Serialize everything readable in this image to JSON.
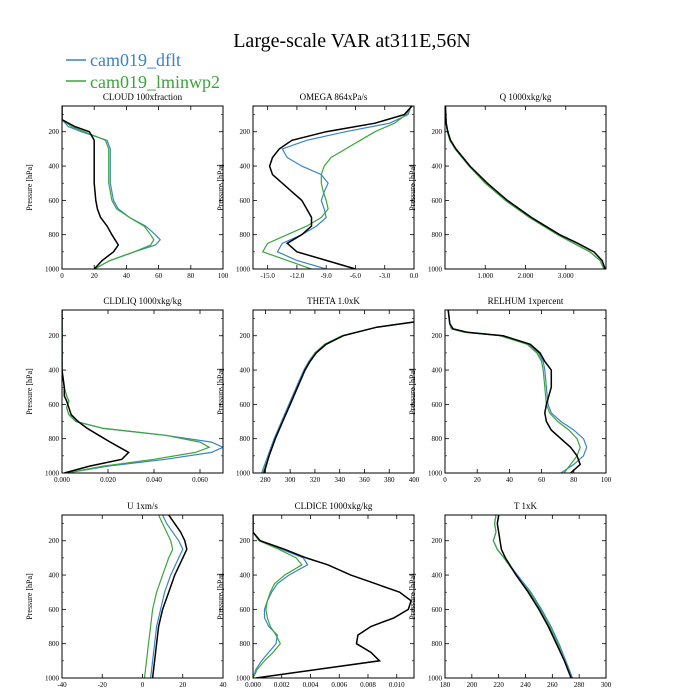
{
  "figure": {
    "title": "Large-scale VAR at311E,56N",
    "legend": [
      {
        "label": "cam019_dflt",
        "color": "#3a84c4"
      },
      {
        "label": "cam019_lminwp2",
        "color": "#3ba53b"
      }
    ],
    "black_color": "#000000"
  },
  "chart_data": [
    {
      "type": "line",
      "title": "CLOUD  100xfraction",
      "ylabel": "Pressure [hPa]",
      "ylim": [
        1000,
        50
      ],
      "yticks": [
        200,
        400,
        600,
        800,
        1000
      ],
      "xlim": [
        0,
        100
      ],
      "xticks": [
        0,
        20,
        40,
        60,
        80,
        100
      ],
      "xtick_labels": [
        "0",
        "20",
        "40",
        "60",
        "80",
        "100"
      ],
      "pressure": [
        50,
        130,
        170,
        200,
        250,
        300,
        400,
        500,
        600,
        650,
        700,
        750,
        800,
        830,
        860,
        900,
        950,
        1000
      ],
      "series": [
        {
          "name": "cam019_dflt",
          "values": [
            0,
            0,
            4,
            12,
            28,
            30,
            30,
            30,
            32,
            35,
            42,
            52,
            58,
            61,
            58,
            45,
            30,
            20
          ]
        },
        {
          "name": "cam019_lminwp2",
          "values": [
            0,
            0,
            6,
            14,
            27,
            29,
            29,
            29,
            31,
            34,
            42,
            51,
            55,
            57,
            55,
            45,
            30,
            20
          ]
        },
        {
          "name": "black",
          "values": [
            0,
            0,
            8,
            17,
            20,
            20,
            20,
            20,
            21,
            22,
            24,
            28,
            31,
            33,
            35,
            32,
            25,
            20
          ]
        }
      ]
    },
    {
      "type": "line",
      "title": "OMEGA  864xPa/s",
      "ylabel": "Pressure [hPa]",
      "ylim": [
        1000,
        50
      ],
      "yticks": [
        200,
        400,
        600,
        800,
        1000
      ],
      "xlim": [
        -16.5,
        0
      ],
      "xticks": [
        -15,
        -12,
        -9,
        -6,
        -3,
        0
      ],
      "xtick_labels": [
        "-15.0",
        "-12.0",
        "-9.0",
        "-6.0",
        "-3.0",
        "0.0"
      ],
      "pressure": [
        50,
        100,
        150,
        200,
        250,
        300,
        350,
        400,
        450,
        500,
        550,
        600,
        650,
        700,
        750,
        800,
        850,
        900,
        950,
        1000
      ],
      "series": [
        {
          "name": "cam019_dflt",
          "values": [
            -0.3,
            -0.6,
            -2.5,
            -7,
            -11,
            -13.5,
            -13,
            -11.5,
            -9.5,
            -8.8,
            -9.2,
            -9.5,
            -9.2,
            -9,
            -10,
            -11.5,
            -13.5,
            -14,
            -12,
            -9
          ]
        },
        {
          "name": "cam019_lminwp2",
          "values": [
            -0.3,
            -0.8,
            -2,
            -4,
            -5.5,
            -7,
            -8.5,
            -9.2,
            -9.5,
            -9.5,
            -9.3,
            -9,
            -8.8,
            -9.5,
            -11,
            -13,
            -15,
            -15.5,
            -13,
            -10.5
          ]
        },
        {
          "name": "black",
          "values": [
            -0.2,
            -1,
            -4,
            -9,
            -12.5,
            -13.8,
            -14.5,
            -14.8,
            -14.5,
            -13.5,
            -12.5,
            -11.5,
            -11,
            -10.5,
            -10.5,
            -11.5,
            -13,
            -12,
            -9,
            -6
          ]
        }
      ]
    },
    {
      "type": "line",
      "title": "Q  1000xkg/kg",
      "ylabel": "Pressure [hPa]",
      "ylim": [
        1000,
        50
      ],
      "yticks": [
        200,
        400,
        600,
        800,
        1000
      ],
      "xlim": [
        0,
        4.0
      ],
      "xticks": [
        1,
        2,
        3
      ],
      "xtick_labels": [
        "1.000",
        "2.000",
        "3.000"
      ],
      "pressure": [
        50,
        150,
        200,
        250,
        300,
        400,
        500,
        600,
        700,
        800,
        850,
        900,
        950,
        1000
      ],
      "series": [
        {
          "name": "cam019_dflt",
          "values": [
            0.01,
            0.03,
            0.06,
            0.12,
            0.25,
            0.6,
            1.0,
            1.5,
            2.1,
            2.8,
            3.2,
            3.6,
            3.85,
            3.95
          ]
        },
        {
          "name": "cam019_lminwp2",
          "values": [
            0.01,
            0.03,
            0.06,
            0.12,
            0.25,
            0.6,
            1.0,
            1.5,
            2.1,
            2.8,
            3.2,
            3.6,
            3.85,
            3.95
          ]
        },
        {
          "name": "black",
          "values": [
            0.01,
            0.03,
            0.07,
            0.14,
            0.27,
            0.62,
            1.05,
            1.55,
            2.15,
            2.85,
            3.3,
            3.7,
            3.9,
            3.98
          ]
        }
      ]
    },
    {
      "type": "line",
      "title": "CLDLIQ  1000xkg/kg",
      "ylabel": "Pressure [hPa]",
      "ylim": [
        1000,
        50
      ],
      "yticks": [
        200,
        400,
        600,
        800,
        1000
      ],
      "xlim": [
        0,
        0.07
      ],
      "xticks": [
        0,
        0.02,
        0.04,
        0.06
      ],
      "xtick_labels": [
        "0.000",
        "0.020",
        "0.040",
        "0.060"
      ],
      "pressure": [
        50,
        400,
        500,
        550,
        580,
        620,
        660,
        700,
        740,
        780,
        820,
        850,
        880,
        920,
        960,
        1000
      ],
      "series": [
        {
          "name": "cam019_dflt",
          "values": [
            0,
            0,
            0.001,
            0.002,
            0.003,
            0.002,
            0.003,
            0.006,
            0.018,
            0.045,
            0.065,
            0.07,
            0.065,
            0.045,
            0.02,
            0.002
          ]
        },
        {
          "name": "cam019_lminwp2",
          "values": [
            0,
            0,
            0.001,
            0.002,
            0.003,
            0.002,
            0.003,
            0.006,
            0.018,
            0.045,
            0.06,
            0.064,
            0.058,
            0.04,
            0.018,
            0.002
          ]
        },
        {
          "name": "black",
          "values": [
            0,
            0,
            0.001,
            0.001,
            0.002,
            0.003,
            0.004,
            0.007,
            0.011,
            0.016,
            0.021,
            0.025,
            0.029,
            0.026,
            0.012,
            0.001
          ]
        }
      ]
    },
    {
      "type": "line",
      "title": "THETA  1.0xK",
      "ylabel": "Pressure [hPa]",
      "ylim": [
        1000,
        50
      ],
      "yticks": [
        200,
        400,
        600,
        800,
        1000
      ],
      "xlim": [
        270,
        400
      ],
      "xticks": [
        280,
        300,
        320,
        340,
        360,
        380,
        400
      ],
      "xtick_labels": [
        "280",
        "300",
        "320",
        "340",
        "360",
        "380",
        "400"
      ],
      "pressure": [
        120,
        150,
        200,
        250,
        300,
        350,
        400,
        500,
        600,
        700,
        800,
        900,
        1000
      ],
      "series": [
        {
          "name": "cam019_dflt",
          "values": [
            400,
            370,
            342,
            328,
            320,
            315,
            311,
            305,
            299,
            293,
            287,
            282,
            277
          ]
        },
        {
          "name": "cam019_lminwp2",
          "values": [
            400,
            370,
            342,
            328,
            320,
            316,
            312,
            306,
            300,
            294,
            288,
            283,
            278
          ]
        },
        {
          "name": "black",
          "values": [
            400,
            370,
            343,
            329,
            321,
            316,
            312,
            306,
            300,
            294,
            288,
            283,
            279
          ]
        }
      ]
    },
    {
      "type": "line",
      "title": "RELHUM  1xpercent",
      "ylabel": "Pressure [hPa]",
      "ylim": [
        1000,
        50
      ],
      "yticks": [
        200,
        400,
        600,
        800,
        1000
      ],
      "xlim": [
        0,
        100
      ],
      "xticks": [
        0,
        20,
        40,
        60,
        80,
        100
      ],
      "xtick_labels": [
        "0",
        "20",
        "40",
        "60",
        "80",
        "100"
      ],
      "pressure": [
        50,
        130,
        160,
        180,
        200,
        250,
        300,
        350,
        400,
        500,
        600,
        650,
        700,
        750,
        800,
        850,
        900,
        950,
        1000
      ],
      "series": [
        {
          "name": "cam019_dflt",
          "values": [
            2,
            3,
            4,
            12,
            35,
            52,
            58,
            61,
            62,
            63,
            64,
            66,
            72,
            80,
            86,
            88,
            86,
            80,
            72
          ]
        },
        {
          "name": "cam019_lminwp2",
          "values": [
            2,
            3,
            4,
            12,
            34,
            51,
            57,
            60,
            61,
            62,
            63,
            65,
            70,
            77,
            82,
            84,
            82,
            78,
            74
          ]
        },
        {
          "name": "black",
          "values": [
            2,
            3,
            5,
            14,
            36,
            53,
            59,
            62,
            66,
            66,
            63,
            62,
            63,
            66,
            72,
            78,
            82,
            84,
            78
          ]
        }
      ]
    },
    {
      "type": "line",
      "title": "U  1xm/s",
      "ylabel": "Pressure [hPa]",
      "ylim": [
        1000,
        50
      ],
      "yticks": [
        200,
        400,
        600,
        800,
        1000
      ],
      "xlim": [
        -40,
        40
      ],
      "xticks": [
        -40,
        -20,
        0,
        20,
        40
      ],
      "xtick_labels": [
        "-40",
        "-20",
        "0",
        "20",
        "40"
      ],
      "pressure": [
        50,
        100,
        150,
        200,
        250,
        300,
        400,
        500,
        600,
        700,
        800,
        900,
        1000
      ],
      "series": [
        {
          "name": "cam019_dflt",
          "values": [
            10,
            12,
            15,
            18,
            20,
            18,
            14,
            11,
            9,
            7,
            6,
            5,
            4
          ]
        },
        {
          "name": "cam019_lminwp2",
          "values": [
            8,
            10,
            12,
            14,
            15,
            13,
            10,
            7,
            5,
            4,
            3,
            2,
            1
          ]
        },
        {
          "name": "black",
          "values": [
            13,
            16,
            19,
            21,
            22,
            20,
            16,
            13,
            10,
            8,
            7,
            6,
            5
          ]
        }
      ]
    },
    {
      "type": "line",
      "title": "CLDICE  1000xkg/kg",
      "ylabel": "Pressure [hPa]",
      "ylim": [
        1000,
        50
      ],
      "yticks": [
        200,
        400,
        600,
        800,
        1000
      ],
      "xlim": [
        0,
        0.0112
      ],
      "xticks": [
        0,
        0.002,
        0.004,
        0.006,
        0.008,
        0.01
      ],
      "xtick_labels": [
        "0.000",
        "0.002",
        "0.004",
        "0.006",
        "0.008",
        "0.010"
      ],
      "pressure": [
        50,
        150,
        200,
        250,
        300,
        340,
        400,
        450,
        500,
        550,
        600,
        650,
        700,
        750,
        800,
        850,
        900,
        950,
        1000
      ],
      "series": [
        {
          "name": "cam019_dflt",
          "values": [
            0,
            0,
            0.0005,
            0.002,
            0.0035,
            0.0038,
            0.0025,
            0.0017,
            0.0013,
            0.001,
            0.0008,
            0.0008,
            0.0011,
            0.0017,
            0.0016,
            0.0011,
            0.0006,
            0.0002,
            0
          ]
        },
        {
          "name": "cam019_lminwp2",
          "values": [
            0,
            0,
            0.0004,
            0.0018,
            0.003,
            0.0034,
            0.0022,
            0.0015,
            0.0012,
            0.001,
            0.0009,
            0.001,
            0.0012,
            0.0016,
            0.0019,
            0.0014,
            0.0008,
            0.0003,
            0
          ]
        },
        {
          "name": "black",
          "values": [
            0,
            0,
            0.0005,
            0.0022,
            0.0037,
            0.0052,
            0.0068,
            0.0085,
            0.0102,
            0.011,
            0.0108,
            0.0098,
            0.0082,
            0.0073,
            0.0072,
            0.0082,
            0.0088,
            0.0045,
            0.0002
          ]
        }
      ]
    },
    {
      "type": "line",
      "title": "T  1xK",
      "ylabel": "Pressure [hPa]",
      "ylim": [
        1000,
        50
      ],
      "yticks": [
        200,
        400,
        600,
        800,
        1000
      ],
      "xlim": [
        180,
        300
      ],
      "xticks": [
        180,
        200,
        220,
        240,
        260,
        280,
        300
      ],
      "xtick_labels": [
        "180",
        "200",
        "220",
        "240",
        "260",
        "280",
        "300"
      ],
      "pressure": [
        50,
        100,
        150,
        200,
        250,
        300,
        400,
        500,
        600,
        700,
        800,
        900,
        1000
      ],
      "series": [
        {
          "name": "cam019_dflt",
          "values": [
            218,
            217,
            218,
            216,
            219,
            224,
            234,
            244,
            252,
            259,
            265,
            270,
            275
          ]
        },
        {
          "name": "cam019_lminwp2",
          "values": [
            218,
            217,
            218,
            216,
            219,
            224,
            233,
            243,
            251,
            258,
            264,
            269,
            274
          ]
        },
        {
          "name": "black",
          "values": [
            220,
            219,
            220,
            221,
            222,
            225,
            233,
            242,
            250,
            257,
            263,
            269,
            274
          ]
        }
      ]
    }
  ]
}
